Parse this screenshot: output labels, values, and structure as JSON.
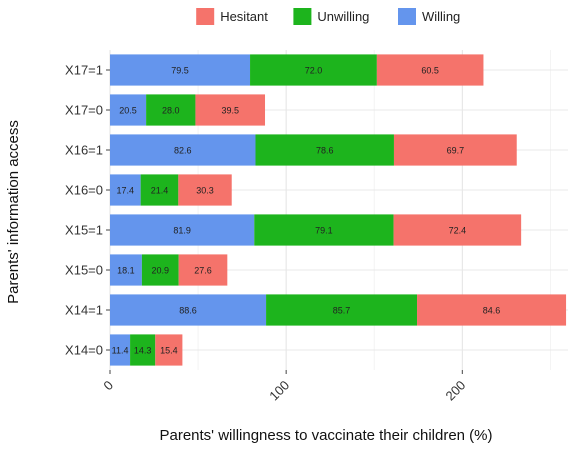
{
  "chart_data": {
    "type": "bar",
    "orientation": "horizontal",
    "stacked": true,
    "title": "",
    "xlabel": "Parents' willingness to vaccinate their children (%)",
    "ylabel": "Parents' information access",
    "xlim": [
      0,
      260
    ],
    "x_ticks": [
      0,
      100,
      200
    ],
    "categories": [
      "X17=1",
      "X17=0",
      "X16=1",
      "X16=0",
      "X15=1",
      "X15=0",
      "X14=1",
      "X14=0"
    ],
    "series": [
      {
        "name": "Willing",
        "color": "#6495ED",
        "values": [
          79.5,
          20.5,
          82.6,
          17.4,
          81.9,
          18.1,
          88.6,
          11.4
        ]
      },
      {
        "name": "Unwilling",
        "color": "#1DB41D",
        "values": [
          72.0,
          28.0,
          78.6,
          21.4,
          79.1,
          20.9,
          85.7,
          14.3
        ]
      },
      {
        "name": "Hesitant",
        "color": "#F5736B",
        "values": [
          60.5,
          39.5,
          69.7,
          30.3,
          72.4,
          27.6,
          84.6,
          15.4
        ]
      }
    ],
    "legend": {
      "position": "top",
      "order": [
        "Hesitant",
        "Unwilling",
        "Willing"
      ]
    },
    "grid": true
  }
}
